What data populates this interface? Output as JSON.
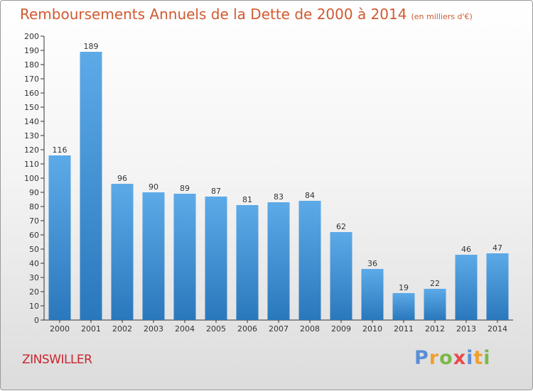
{
  "title": "Remboursements Annuels de la Dette de 2000 à 2014",
  "unit": "(en milliers d'€)",
  "commune": "ZINSWILLER",
  "logo_letters": [
    "P",
    "r",
    "o",
    "x",
    "i",
    "t",
    "i"
  ],
  "colors": {
    "bar_top": "#5daae8",
    "bar_bottom": "#2a78bc",
    "title": "#d05a30",
    "commune": "#c8262f"
  },
  "chart_data": {
    "type": "bar",
    "title": "Remboursements Annuels de la Dette de 2000 à 2014",
    "xlabel": "",
    "ylabel": "",
    "ylim": [
      0,
      200
    ],
    "ytick_step": 10,
    "grid": false,
    "categories": [
      "2000",
      "2001",
      "2002",
      "2003",
      "2004",
      "2005",
      "2006",
      "2007",
      "2008",
      "2009",
      "2010",
      "2011",
      "2012",
      "2013",
      "2014"
    ],
    "values": [
      116,
      189,
      96,
      90,
      89,
      87,
      81,
      83,
      84,
      62,
      36,
      19,
      22,
      46,
      47
    ]
  }
}
